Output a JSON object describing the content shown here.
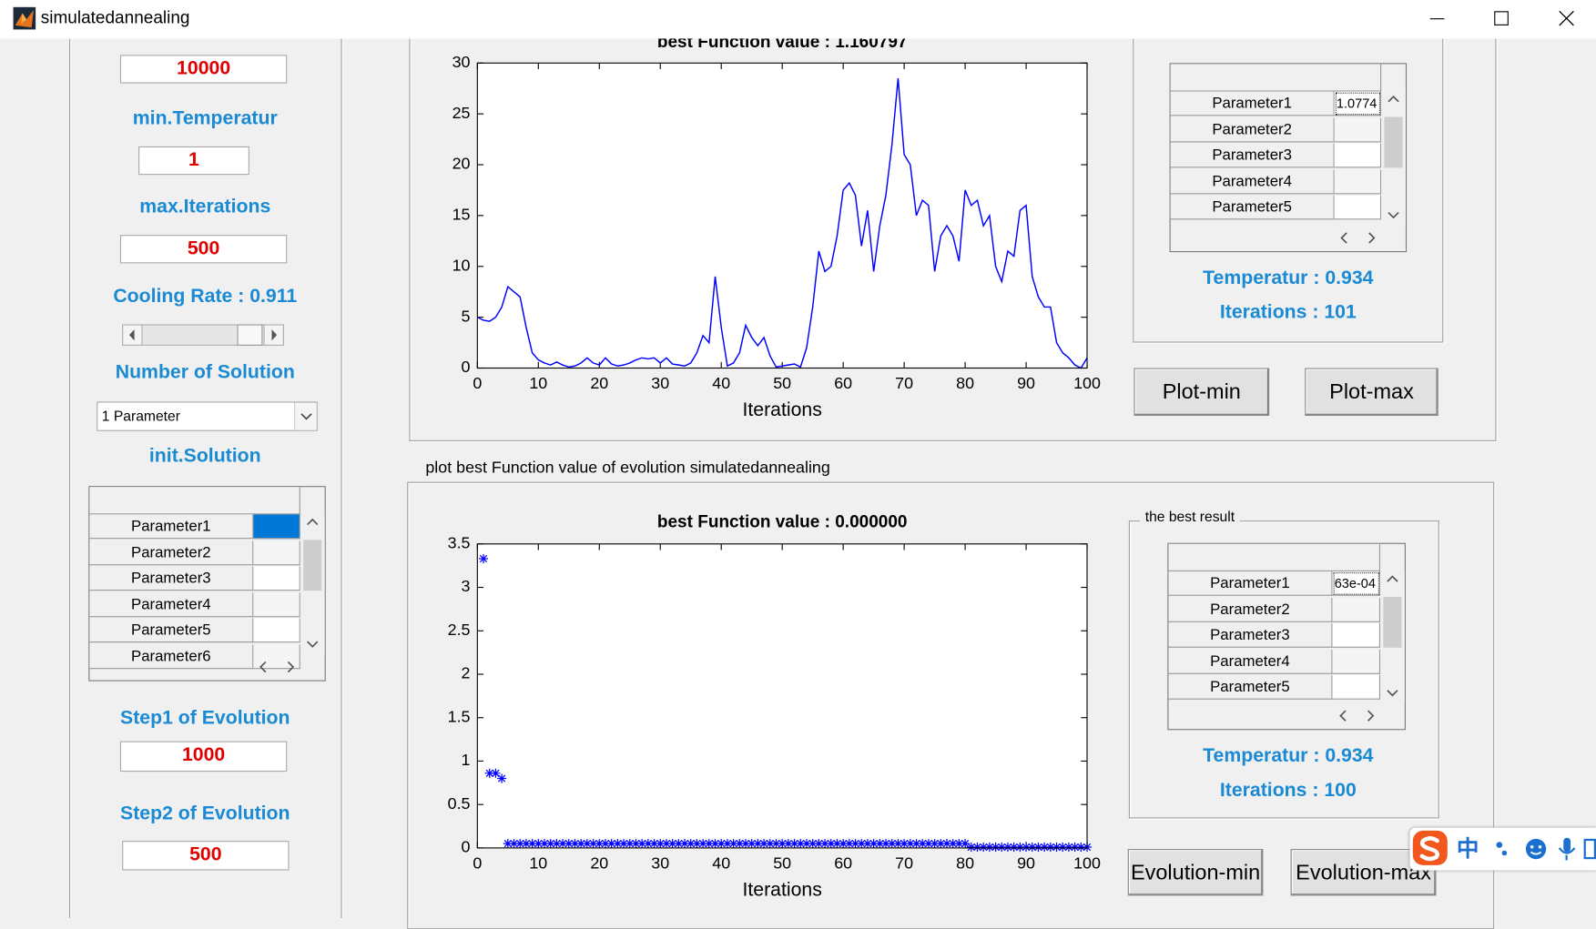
{
  "window": {
    "title": "simulatedannealing"
  },
  "left_panel": {
    "top_input": "10000",
    "min_temperature": {
      "label": "min.Temperatur",
      "value": "1"
    },
    "max_iterations": {
      "label": "max.Iterations",
      "value": "500"
    },
    "cooling_rate": "Cooling Rate : 0.911",
    "number_of_solution": {
      "label": "Number of Solution",
      "selected": "1 Parameter"
    },
    "init_solution": {
      "label": "init.Solution",
      "rows": [
        "Parameter1",
        "Parameter2",
        "Parameter3",
        "Parameter4",
        "Parameter5",
        "Parameter6"
      ]
    },
    "step1": {
      "label": "Step1 of Evolution",
      "value": "1000"
    },
    "step2": {
      "label": "Step2 of Evolution",
      "value": "500"
    }
  },
  "chart_data": [
    {
      "type": "line",
      "title": "best Function value : 1.160797",
      "x_label": "Iterations",
      "color": "#0000ff",
      "x": [
        0,
        1,
        2,
        3,
        4,
        5,
        6,
        7,
        8,
        9,
        10,
        11,
        12,
        13,
        14,
        15,
        16,
        17,
        18,
        19,
        20,
        21,
        22,
        23,
        24,
        25,
        26,
        27,
        28,
        29,
        30,
        31,
        32,
        33,
        34,
        35,
        36,
        37,
        38,
        39,
        40,
        41,
        42,
        43,
        44,
        45,
        46,
        47,
        48,
        49,
        50,
        51,
        52,
        53,
        54,
        55,
        56,
        57,
        58,
        59,
        60,
        61,
        62,
        63,
        64,
        65,
        66,
        67,
        68,
        69,
        70,
        71,
        72,
        73,
        74,
        75,
        76,
        77,
        78,
        79,
        80,
        81,
        82,
        83,
        84,
        85,
        86,
        87,
        88,
        89,
        90,
        91,
        92,
        93,
        94,
        95,
        96,
        97,
        98,
        99,
        100
      ],
      "values": [
        5,
        4.7,
        4.6,
        5,
        6,
        8,
        7.5,
        7,
        4,
        1.5,
        0.8,
        0.5,
        0.3,
        0.6,
        0.3,
        0.1,
        0.2,
        0.5,
        1,
        0.5,
        0.3,
        1,
        0.4,
        0.2,
        0.3,
        0.5,
        0.8,
        1,
        0.9,
        1,
        0.5,
        1,
        0.4,
        0.3,
        0.2,
        0.5,
        1.5,
        3.2,
        2.5,
        9,
        4,
        0.2,
        0.5,
        1.5,
        4.2,
        3,
        2.2,
        3,
        1.2,
        0.1,
        0.2,
        0.3,
        0.4,
        0.1,
        2,
        6,
        11.5,
        9.5,
        10,
        13,
        17.5,
        18.2,
        17,
        12,
        15.5,
        9.5,
        14,
        17,
        22,
        28.5,
        21,
        20,
        15,
        16.5,
        16,
        9.5,
        13,
        14,
        13,
        10.5,
        17.5,
        16,
        16.5,
        14,
        15,
        10,
        8.5,
        11.5,
        11,
        15.5,
        16,
        9,
        7,
        6,
        6,
        2.5,
        1.5,
        1,
        0.3,
        0,
        1
      ],
      "xlim": [
        0,
        100
      ],
      "xticks": [
        0,
        10,
        20,
        30,
        40,
        50,
        60,
        70,
        80,
        90,
        100
      ],
      "ylim": [
        0,
        30
      ],
      "yticks": [
        0,
        5,
        10,
        15,
        20,
        25,
        30
      ]
    },
    {
      "type": "scatter",
      "title": "best Function value : 0.000000",
      "x_label": "Iterations",
      "color": "#0000ff",
      "x": [
        1,
        2,
        3,
        4,
        5,
        6,
        7,
        8,
        9,
        10,
        11,
        12,
        13,
        14,
        15,
        16,
        17,
        18,
        19,
        20,
        21,
        22,
        23,
        24,
        25,
        26,
        27,
        28,
        29,
        30,
        31,
        32,
        33,
        34,
        35,
        36,
        37,
        38,
        39,
        40,
        41,
        42,
        43,
        44,
        45,
        46,
        47,
        48,
        49,
        50,
        51,
        52,
        53,
        54,
        55,
        56,
        57,
        58,
        59,
        60,
        61,
        62,
        63,
        64,
        65,
        66,
        67,
        68,
        69,
        70,
        71,
        72,
        73,
        74,
        75,
        76,
        77,
        78,
        79,
        80,
        81,
        82,
        83,
        84,
        85,
        86,
        87,
        88,
        89,
        90,
        91,
        92,
        93,
        94,
        95,
        96,
        97,
        98,
        99,
        100
      ],
      "values": [
        3.33,
        0.86,
        0.86,
        0.8,
        0.05,
        0.05,
        0.05,
        0.05,
        0.05,
        0.05,
        0.05,
        0.05,
        0.05,
        0.05,
        0.05,
        0.05,
        0.05,
        0.05,
        0.05,
        0.05,
        0.05,
        0.05,
        0.05,
        0.05,
        0.05,
        0.05,
        0.05,
        0.05,
        0.05,
        0.05,
        0.05,
        0.05,
        0.05,
        0.05,
        0.05,
        0.05,
        0.05,
        0.05,
        0.05,
        0.05,
        0.05,
        0.05,
        0.05,
        0.05,
        0.05,
        0.05,
        0.05,
        0.05,
        0.05,
        0.05,
        0.05,
        0.05,
        0.05,
        0.05,
        0.05,
        0.05,
        0.05,
        0.05,
        0.05,
        0.05,
        0.05,
        0.05,
        0.05,
        0.05,
        0.05,
        0.05,
        0.05,
        0.05,
        0.05,
        0.05,
        0.05,
        0.05,
        0.05,
        0.05,
        0.05,
        0.05,
        0.05,
        0.05,
        0.05,
        0.05,
        0.01,
        0.01,
        0.01,
        0.01,
        0.01,
        0.01,
        0.01,
        0.01,
        0.01,
        0.01,
        0.01,
        0.01,
        0.01,
        0.01,
        0.01,
        0.01,
        0.01,
        0.01,
        0.01,
        0.01
      ],
      "xlim": [
        0,
        100
      ],
      "xticks": [
        0,
        10,
        20,
        30,
        40,
        50,
        60,
        70,
        80,
        90,
        100
      ],
      "ylim": [
        0,
        3.5
      ],
      "yticks": [
        0,
        0.5,
        1,
        1.5,
        2,
        2.5,
        3,
        3.5
      ]
    }
  ],
  "top_result": {
    "rows": [
      "Parameter1",
      "Parameter2",
      "Parameter3",
      "Parameter4",
      "Parameter5"
    ],
    "value": "1.0774",
    "temperature": "Temperatur : 0.934",
    "iterations": "Iterations : 101",
    "buttons": [
      "Plot-min",
      "Plot-max"
    ]
  },
  "bottom_panel_title": "plot best Function value of evolution simulatedannealing",
  "bottom_result": {
    "group_title": "the best result",
    "rows": [
      "Parameter1",
      "Parameter2",
      "Parameter3",
      "Parameter4",
      "Parameter5"
    ],
    "value": "63e-04",
    "temperature": "Temperatur : 0.934",
    "iterations": "Iterations : 100",
    "buttons": [
      "Evolution-min",
      "Evolution-max"
    ]
  },
  "ime": {
    "label": "中"
  }
}
